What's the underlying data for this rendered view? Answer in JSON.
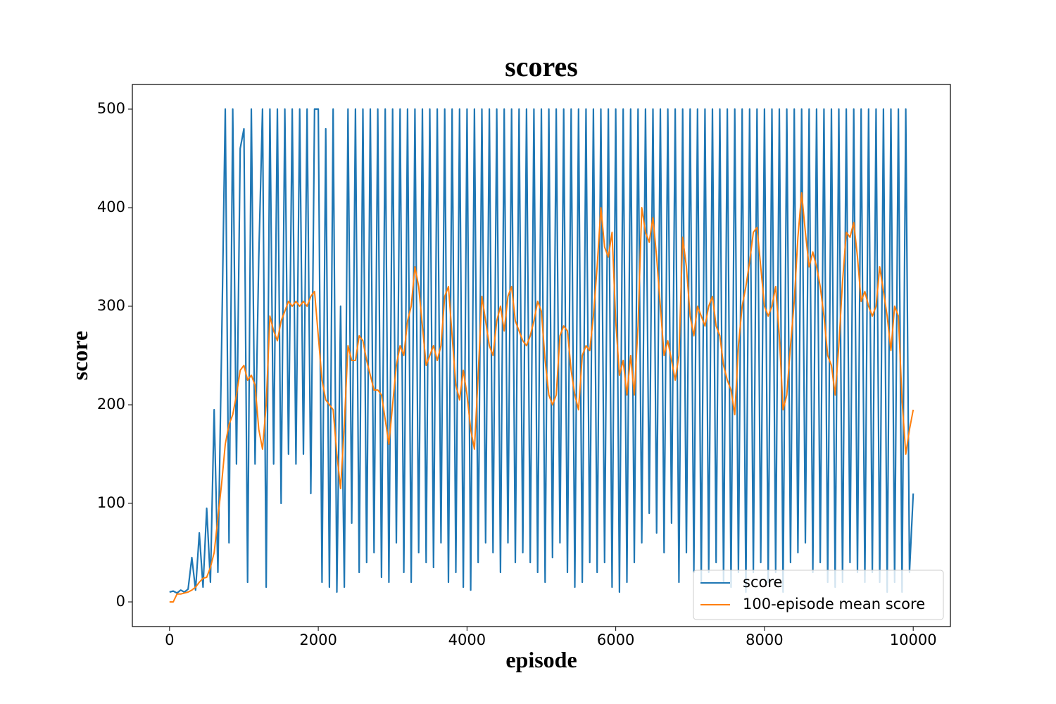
{
  "chart_data": {
    "type": "line",
    "title": "scores",
    "x_label": "episode",
    "y_label": "score",
    "xlim": [
      -500,
      10500
    ],
    "ylim": [
      -25,
      525
    ],
    "xticks": [
      0,
      2000,
      4000,
      6000,
      8000,
      10000
    ],
    "yticks": [
      0,
      100,
      200,
      300,
      400,
      500
    ],
    "legend": "lower right",
    "x": [
      0,
      50,
      100,
      150,
      200,
      250,
      300,
      350,
      400,
      450,
      500,
      550,
      600,
      650,
      700,
      750,
      800,
      850,
      900,
      950,
      1000,
      1050,
      1100,
      1150,
      1200,
      1250,
      1300,
      1350,
      1400,
      1450,
      1500,
      1550,
      1600,
      1650,
      1700,
      1750,
      1800,
      1850,
      1900,
      1950,
      2000,
      2050,
      2100,
      2150,
      2200,
      2250,
      2300,
      2350,
      2400,
      2450,
      2500,
      2550,
      2600,
      2650,
      2700,
      2750,
      2800,
      2850,
      2900,
      2950,
      3000,
      3050,
      3100,
      3150,
      3200,
      3250,
      3300,
      3350,
      3400,
      3450,
      3500,
      3550,
      3600,
      3650,
      3700,
      3750,
      3800,
      3850,
      3900,
      3950,
      4000,
      4050,
      4100,
      4150,
      4200,
      4250,
      4300,
      4350,
      4400,
      4450,
      4500,
      4550,
      4600,
      4650,
      4700,
      4750,
      4800,
      4850,
      4900,
      4950,
      5000,
      5050,
      5100,
      5150,
      5200,
      5250,
      5300,
      5350,
      5400,
      5450,
      5500,
      5550,
      5600,
      5650,
      5700,
      5750,
      5800,
      5850,
      5900,
      5950,
      6000,
      6050,
      6100,
      6150,
      6200,
      6250,
      6300,
      6350,
      6400,
      6450,
      6500,
      6550,
      6600,
      6650,
      6700,
      6750,
      6800,
      6850,
      6900,
      6950,
      7000,
      7050,
      7100,
      7150,
      7200,
      7250,
      7300,
      7350,
      7400,
      7450,
      7500,
      7550,
      7600,
      7650,
      7700,
      7750,
      7800,
      7850,
      7900,
      7950,
      8000,
      8050,
      8100,
      8150,
      8200,
      8250,
      8300,
      8350,
      8400,
      8450,
      8500,
      8550,
      8600,
      8650,
      8700,
      8750,
      8800,
      8850,
      8900,
      8950,
      9000,
      9050,
      9100,
      9150,
      9200,
      9250,
      9300,
      9350,
      9400,
      9450,
      9500,
      9550,
      9600,
      9650,
      9700,
      9750,
      9800,
      9850,
      9900,
      9950,
      10000
    ],
    "series": [
      {
        "name": "score",
        "color": "#1f77b4",
        "values": [
          10,
          11,
          9,
          12,
          10,
          13,
          45,
          12,
          70,
          15,
          95,
          20,
          195,
          30,
          260,
          500,
          60,
          500,
          140,
          460,
          480,
          20,
          500,
          140,
          350,
          500,
          15,
          500,
          140,
          500,
          100,
          500,
          150,
          500,
          140,
          500,
          150,
          500,
          110,
          500,
          500,
          20,
          480,
          15,
          500,
          10,
          300,
          15,
          500,
          80,
          500,
          30,
          500,
          40,
          500,
          50,
          500,
          25,
          500,
          20,
          500,
          60,
          500,
          30,
          500,
          20,
          500,
          50,
          500,
          40,
          500,
          35,
          500,
          60,
          500,
          20,
          500,
          30,
          500,
          15,
          500,
          12,
          500,
          40,
          500,
          60,
          500,
          50,
          500,
          30,
          500,
          60,
          500,
          40,
          500,
          50,
          500,
          40,
          500,
          30,
          500,
          20,
          500,
          45,
          500,
          60,
          500,
          30,
          500,
          15,
          500,
          20,
          500,
          40,
          500,
          30,
          500,
          40,
          500,
          15,
          500,
          10,
          500,
          20,
          500,
          40,
          500,
          60,
          500,
          90,
          500,
          70,
          500,
          50,
          500,
          80,
          500,
          20,
          500,
          50,
          500,
          30,
          500,
          20,
          500,
          30,
          500,
          40,
          500,
          20,
          500,
          15,
          500,
          30,
          500,
          10,
          500,
          30,
          500,
          40,
          500,
          20,
          500,
          30,
          500,
          10,
          500,
          40,
          500,
          50,
          500,
          60,
          500,
          30,
          500,
          40,
          500,
          20,
          500,
          15,
          500,
          20,
          500,
          40,
          500,
          30,
          500,
          20,
          500,
          30,
          500,
          20,
          500,
          10,
          500,
          20,
          500,
          10,
          500,
          30,
          110
        ]
      },
      {
        "name": "100-episode mean score",
        "color": "#ff7f0e",
        "values": [
          0,
          0,
          8,
          8,
          9,
          10,
          12,
          15,
          20,
          24,
          25,
          35,
          50,
          85,
          120,
          160,
          180,
          190,
          210,
          235,
          240,
          225,
          230,
          220,
          175,
          155,
          200,
          290,
          275,
          265,
          285,
          295,
          305,
          300,
          305,
          300,
          305,
          300,
          310,
          315,
          270,
          225,
          205,
          200,
          195,
          150,
          115,
          180,
          260,
          245,
          245,
          270,
          265,
          245,
          230,
          215,
          215,
          210,
          185,
          160,
          200,
          240,
          260,
          250,
          285,
          300,
          340,
          320,
          280,
          240,
          250,
          260,
          245,
          260,
          310,
          320,
          270,
          220,
          205,
          235,
          210,
          175,
          155,
          230,
          310,
          285,
          260,
          250,
          285,
          300,
          275,
          310,
          320,
          285,
          275,
          265,
          260,
          270,
          285,
          305,
          295,
          245,
          210,
          200,
          210,
          270,
          280,
          275,
          235,
          210,
          195,
          250,
          260,
          255,
          290,
          340,
          400,
          360,
          350,
          375,
          285,
          230,
          245,
          210,
          250,
          210,
          280,
          400,
          375,
          365,
          390,
          350,
          300,
          250,
          265,
          245,
          225,
          250,
          370,
          340,
          290,
          270,
          300,
          290,
          280,
          300,
          310,
          280,
          270,
          240,
          225,
          215,
          190,
          260,
          300,
          320,
          345,
          375,
          380,
          340,
          300,
          290,
          300,
          320,
          270,
          195,
          210,
          260,
          305,
          370,
          415,
          375,
          340,
          355,
          340,
          320,
          290,
          250,
          240,
          210,
          260,
          325,
          375,
          370,
          385,
          350,
          305,
          315,
          300,
          290,
          300,
          340,
          315,
          290,
          255,
          300,
          290,
          205,
          150,
          175,
          195
        ]
      }
    ]
  }
}
